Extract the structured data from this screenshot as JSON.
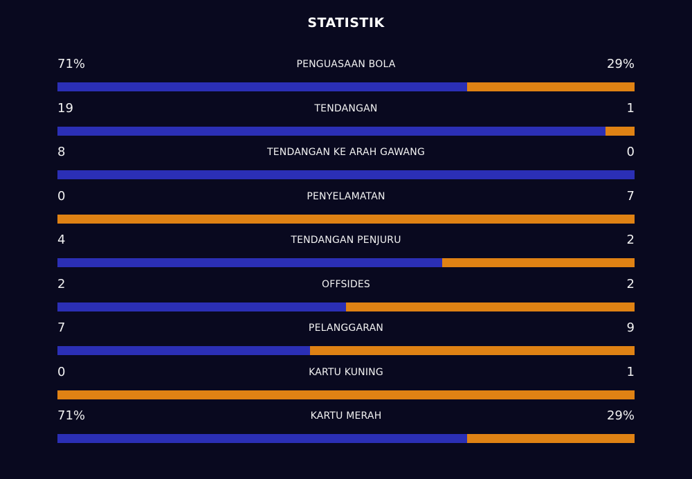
{
  "title": "STATISTIK",
  "colors": {
    "background": "#09091f",
    "home": "#2b2fb5",
    "away": "#df8214"
  },
  "stats": [
    {
      "label": "PENGUASAAN BOLA",
      "home": "71%",
      "away": "29%",
      "home_share": 0.71
    },
    {
      "label": "TENDANGAN",
      "home": "19",
      "away": "1",
      "home_share": 0.95
    },
    {
      "label": "TENDANGAN KE ARAH GAWANG",
      "home": "8",
      "away": "0",
      "home_share": 1.0
    },
    {
      "label": "PENYELAMATAN",
      "home": "0",
      "away": "7",
      "home_share": 0.0
    },
    {
      "label": "TENDANGAN PENJURU",
      "home": "4",
      "away": "2",
      "home_share": 0.667
    },
    {
      "label": "OFFSIDES",
      "home": "2",
      "away": "2",
      "home_share": 0.5
    },
    {
      "label": "PELANGGARAN",
      "home": "7",
      "away": "9",
      "home_share": 0.4375
    },
    {
      "label": "KARTU KUNING",
      "home": "0",
      "away": "1",
      "home_share": 0.0
    },
    {
      "label": "KARTU MERAH",
      "home": "71%",
      "away": "29%",
      "home_share": 0.71
    }
  ]
}
